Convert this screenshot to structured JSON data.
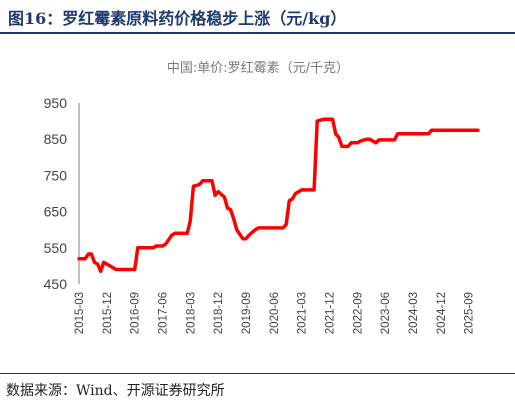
{
  "figure": {
    "title": "图16：罗红霉素原料药价格稳步上涨（元/kg）",
    "source": "数据来源：Wind、开源证券研究所"
  },
  "chart_data": {
    "type": "line",
    "title": "中国:单价:罗红霉素（元/千克）",
    "ylim": [
      450,
      950
    ],
    "y_ticks": [
      450,
      550,
      650,
      750,
      850,
      950
    ],
    "x_range": [
      "2015-03",
      "2025-12"
    ],
    "x_tick_labels": [
      "2015-03",
      "2015-12",
      "2016-09",
      "2017-06",
      "2018-03",
      "2018-12",
      "2019-09",
      "2020-06",
      "2021-03",
      "2021-12",
      "2022-09",
      "2023-06",
      "2024-03",
      "2024-12",
      "2025-09"
    ],
    "grid": false,
    "legend": "none",
    "series": [
      {
        "color": "#ff0000",
        "points": [
          [
            "2015-03",
            520
          ],
          [
            "2015-05",
            520
          ],
          [
            "2015-06",
            533
          ],
          [
            "2015-07",
            533
          ],
          [
            "2015-08",
            510
          ],
          [
            "2015-09",
            505
          ],
          [
            "2015-10",
            485
          ],
          [
            "2015-11",
            510
          ],
          [
            "2015-12",
            505
          ],
          [
            "2016-01",
            500
          ],
          [
            "2016-03",
            490
          ],
          [
            "2016-06",
            490
          ],
          [
            "2016-09",
            490
          ],
          [
            "2016-10",
            550
          ],
          [
            "2017-01",
            550
          ],
          [
            "2017-03",
            550
          ],
          [
            "2017-04",
            555
          ],
          [
            "2017-06",
            555
          ],
          [
            "2017-07",
            560
          ],
          [
            "2017-09",
            585
          ],
          [
            "2017-10",
            590
          ],
          [
            "2017-12",
            590
          ],
          [
            "2018-02",
            590
          ],
          [
            "2018-03",
            625
          ],
          [
            "2018-04",
            720
          ],
          [
            "2018-06",
            725
          ],
          [
            "2018-07",
            735
          ],
          [
            "2018-09",
            735
          ],
          [
            "2018-10",
            735
          ],
          [
            "2018-11",
            695
          ],
          [
            "2018-12",
            705
          ],
          [
            "2019-02",
            690
          ],
          [
            "2019-03",
            660
          ],
          [
            "2019-04",
            655
          ],
          [
            "2019-05",
            630
          ],
          [
            "2019-06",
            600
          ],
          [
            "2019-08",
            575
          ],
          [
            "2019-09",
            575
          ],
          [
            "2019-10",
            585
          ],
          [
            "2019-12",
            600
          ],
          [
            "2020-01",
            605
          ],
          [
            "2020-03",
            605
          ],
          [
            "2020-04",
            605
          ],
          [
            "2020-06",
            605
          ],
          [
            "2020-09",
            605
          ],
          [
            "2020-10",
            615
          ],
          [
            "2020-11",
            680
          ],
          [
            "2020-12",
            685
          ],
          [
            "2021-01",
            700
          ],
          [
            "2021-03",
            710
          ],
          [
            "2021-07",
            710
          ],
          [
            "2021-08",
            900
          ],
          [
            "2021-10",
            905
          ],
          [
            "2021-12",
            905
          ],
          [
            "2022-01",
            905
          ],
          [
            "2022-02",
            865
          ],
          [
            "2022-03",
            855
          ],
          [
            "2022-04",
            830
          ],
          [
            "2022-06",
            830
          ],
          [
            "2022-07",
            840
          ],
          [
            "2022-09",
            840
          ],
          [
            "2022-10",
            845
          ],
          [
            "2022-12",
            850
          ],
          [
            "2023-01",
            850
          ],
          [
            "2023-03",
            840
          ],
          [
            "2023-04",
            848
          ],
          [
            "2023-06",
            848
          ],
          [
            "2023-09",
            848
          ],
          [
            "2023-10",
            865
          ],
          [
            "2024-01",
            865
          ],
          [
            "2024-03",
            865
          ],
          [
            "2024-06",
            865
          ],
          [
            "2024-08",
            865
          ],
          [
            "2024-09",
            875
          ],
          [
            "2025-01",
            875
          ],
          [
            "2025-06",
            875
          ],
          [
            "2025-12",
            875
          ]
        ]
      }
    ]
  }
}
